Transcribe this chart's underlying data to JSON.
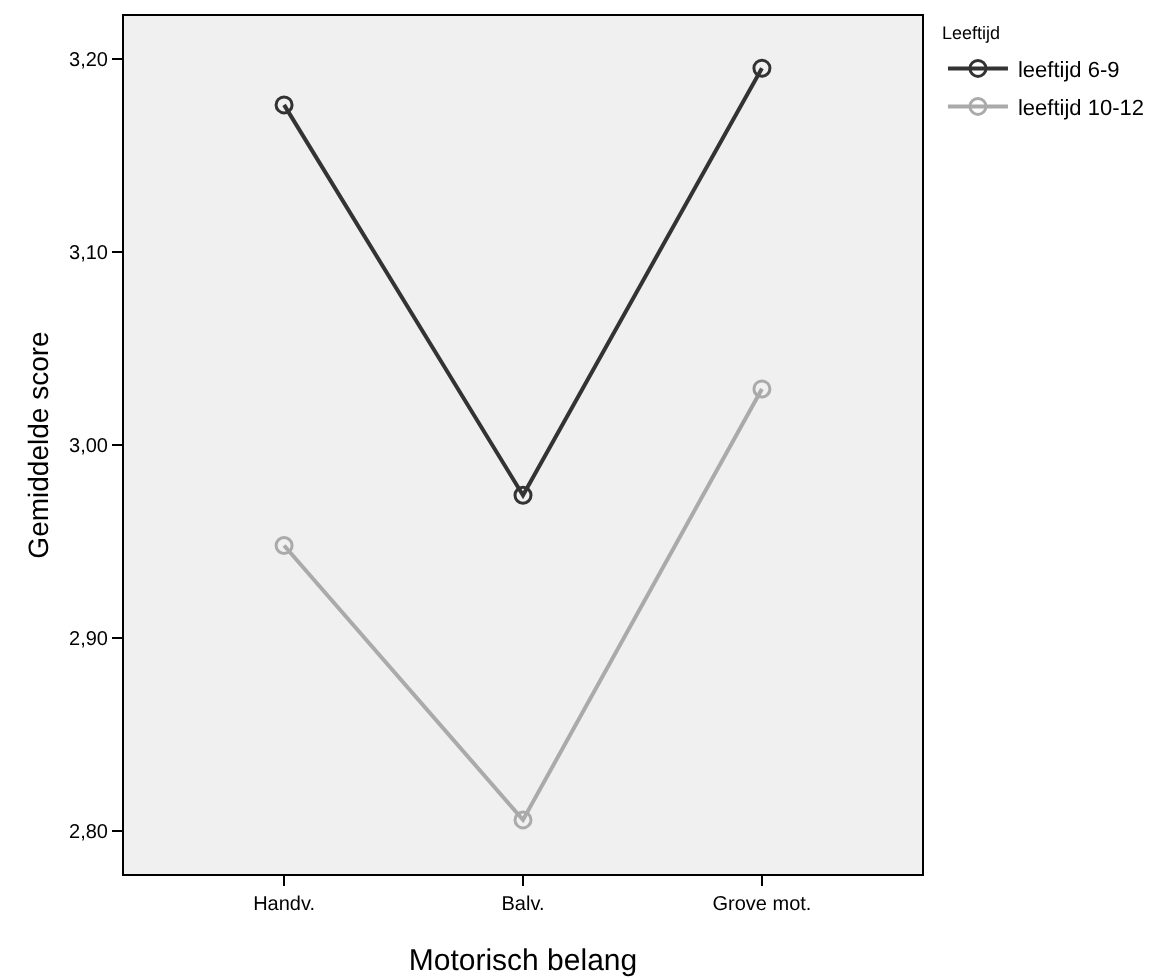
{
  "chart_data": {
    "type": "line",
    "xlabel": "Motorisch belang",
    "ylabel": "Gemiddelde score",
    "legend_title": "Leeftijd",
    "categories": [
      "Handv.",
      "Balv.",
      "Grove mot."
    ],
    "series": [
      {
        "name": "leeftijd 6-9",
        "color": "#333333",
        "values": [
          3.176,
          2.974,
          3.195
        ]
      },
      {
        "name": "leeftijd 10-12",
        "color": "#aaaaaa",
        "values": [
          2.948,
          2.806,
          3.029
        ]
      }
    ],
    "ylim": [
      2.778,
      3.222
    ],
    "yticks": [
      {
        "value": 2.8,
        "label": "2,80"
      },
      {
        "value": 2.9,
        "label": "2,90"
      },
      {
        "value": 3.0,
        "label": "3,00"
      },
      {
        "value": 3.1,
        "label": "3,10"
      },
      {
        "value": 3.2,
        "label": "3,20"
      }
    ],
    "grid": false,
    "legend": "top right",
    "marker": "circle",
    "line_style": "solid"
  }
}
